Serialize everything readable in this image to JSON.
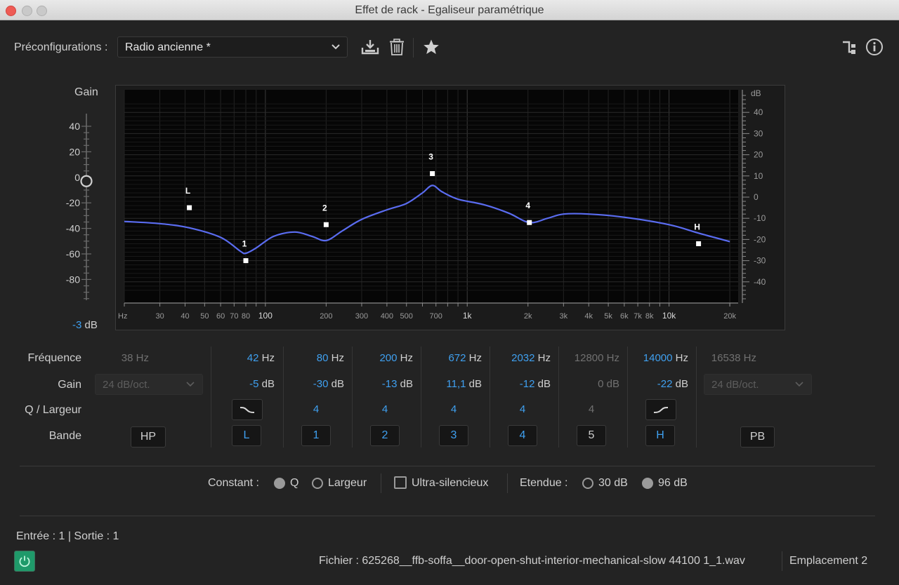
{
  "window": {
    "title": "Effet de rack - Egaliseur paramétrique"
  },
  "presets": {
    "label": "Préconfigurations :",
    "selected": "Radio ancienne *"
  },
  "icons": {
    "save": "download-icon",
    "delete": "trash-icon",
    "favorite": "star-icon",
    "routing": "routing-icon",
    "info": "info-icon"
  },
  "gain_slider": {
    "title": "Gain",
    "ticks": [
      "40",
      "20",
      "0",
      "-20",
      "-40",
      "-60",
      "-80"
    ],
    "readout_value": "-3",
    "readout_unit": "dB"
  },
  "graph": {
    "x_ticks": [
      "Hz",
      "30",
      "40",
      "50",
      "60",
      "70",
      "80",
      "100",
      "200",
      "300",
      "400",
      "500",
      "700",
      "1k",
      "2k",
      "3k",
      "4k",
      "5k",
      "6k",
      "7k",
      "8k",
      "10k",
      "20k"
    ],
    "db_unit": "dB",
    "db_ticks": [
      "40",
      "30",
      "20",
      "10",
      "0",
      "-10",
      "-20",
      "-30",
      "-40"
    ],
    "handles": [
      {
        "label": "L",
        "freq": 42,
        "gain": -5
      },
      {
        "label": "1",
        "freq": 80,
        "gain": -30
      },
      {
        "label": "2",
        "freq": 200,
        "gain": -13
      },
      {
        "label": "3",
        "freq": 672,
        "gain": 11.1
      },
      {
        "label": "4",
        "freq": 2032,
        "gain": -12
      },
      {
        "label": "H",
        "freq": 14000,
        "gain": -22
      }
    ],
    "curve": [
      [
        20,
        -11.5
      ],
      [
        30,
        -12.5
      ],
      [
        42,
        -14.5
      ],
      [
        60,
        -19
      ],
      [
        75,
        -25.5
      ],
      [
        80,
        -26.5
      ],
      [
        90,
        -24
      ],
      [
        110,
        -18.5
      ],
      [
        140,
        -16.5
      ],
      [
        170,
        -18.5
      ],
      [
        200,
        -20.5
      ],
      [
        240,
        -16
      ],
      [
        300,
        -10.5
      ],
      [
        400,
        -6
      ],
      [
        500,
        -3
      ],
      [
        600,
        2
      ],
      [
        672,
        5.5
      ],
      [
        750,
        2.5
      ],
      [
        900,
        -1
      ],
      [
        1200,
        -3.5
      ],
      [
        1600,
        -7.5
      ],
      [
        2032,
        -12
      ],
      [
        2500,
        -10
      ],
      [
        3000,
        -8
      ],
      [
        4000,
        -8
      ],
      [
        6000,
        -9.5
      ],
      [
        10000,
        -13
      ],
      [
        14000,
        -17
      ],
      [
        20000,
        -21
      ]
    ]
  },
  "table": {
    "row_labels": {
      "freq": "Fréquence",
      "gain": "Gain",
      "q": "Q / Largeur",
      "band": "Bande"
    },
    "hp": {
      "freq_value": "38",
      "freq_unit": "Hz",
      "slope": "24 dB/oct.",
      "band": "HP"
    },
    "lp": {
      "freq_value": "16538",
      "freq_unit": "Hz",
      "slope": "24 dB/oct.",
      "band": "PB"
    },
    "bands": [
      {
        "band": "L",
        "freq": "42",
        "gain": "-5",
        "q": "",
        "active": true
      },
      {
        "band": "1",
        "freq": "80",
        "gain": "-30",
        "q": "4",
        "active": true
      },
      {
        "band": "2",
        "freq": "200",
        "gain": "-13",
        "q": "4",
        "active": true
      },
      {
        "band": "3",
        "freq": "672",
        "gain": "11,1",
        "q": "4",
        "active": true
      },
      {
        "band": "4",
        "freq": "2032",
        "gain": "-12",
        "q": "4",
        "active": true
      },
      {
        "band": "5",
        "freq": "12800",
        "gain": "0",
        "q": "4",
        "active": false
      },
      {
        "band": "H",
        "freq": "14000",
        "gain": "-22",
        "q": "",
        "active": true
      }
    ],
    "units": {
      "hz": "Hz",
      "db": "dB"
    }
  },
  "options": {
    "constant_label": "Constant :",
    "q_label": "Q",
    "width_label": "Largeur",
    "ultra_label": "Ultra-silencieux",
    "range_label": "Etendue :",
    "range_30": "30 dB",
    "range_96": "96 dB",
    "constant_selected": "Q",
    "range_selected": "96 dB",
    "ultra_checked": false
  },
  "footer": {
    "io": "Entrée : 1 | Sortie : 1",
    "file": "Fichier : 625268__ffb-soffa__door-open-shut-interior-mechanical-slow 44100 1_1.wav",
    "location": "Emplacement 2"
  }
}
